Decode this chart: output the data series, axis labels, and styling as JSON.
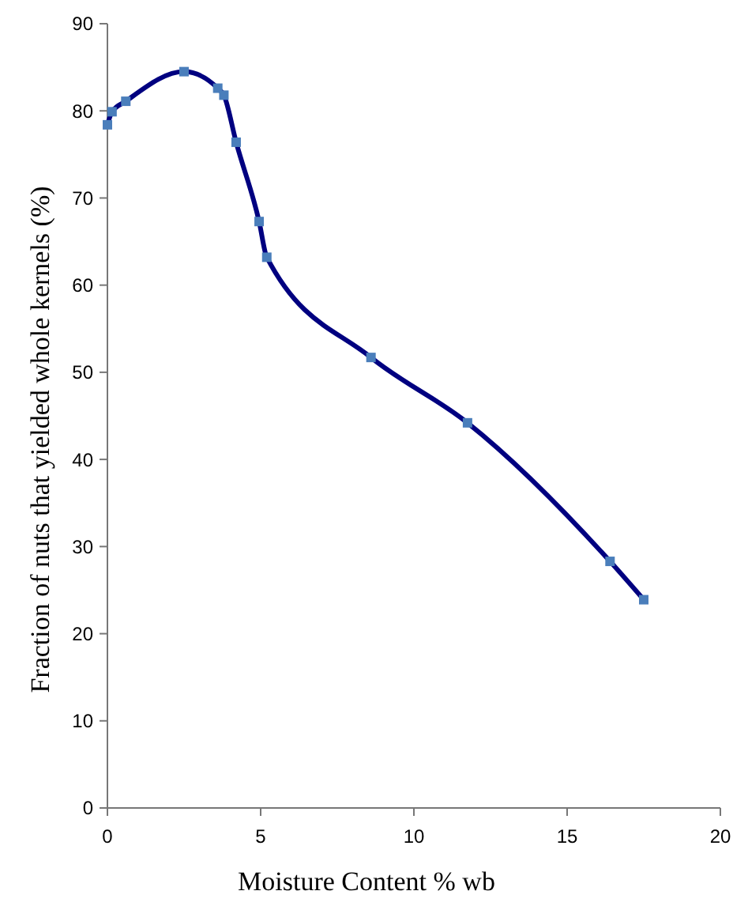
{
  "chart_data": {
    "type": "line",
    "xlabel": "Moisture Content % wb",
    "ylabel": "Fraction of nuts that yielded whole kernels (%)",
    "x": [
      0,
      0.15,
      0.6,
      2.5,
      3.6,
      3.8,
      4.2,
      4.95,
      5.2,
      8.6,
      11.75,
      16.4,
      17.5
    ],
    "series": [
      {
        "color": "#000080",
        "values": [
          78.4,
          79.9,
          81.1,
          84.5,
          82.6,
          81.8,
          76.4,
          67.3,
          63.2,
          51.7,
          44.2,
          28.3,
          23.9
        ]
      }
    ],
    "xlim": [
      0,
      20
    ],
    "xticks": [
      0,
      5,
      10,
      15,
      20
    ],
    "ylim": [
      0,
      90
    ],
    "yticks": [
      0,
      10,
      20,
      30,
      40,
      50,
      60,
      70,
      80,
      90
    ],
    "marker": "square"
  }
}
